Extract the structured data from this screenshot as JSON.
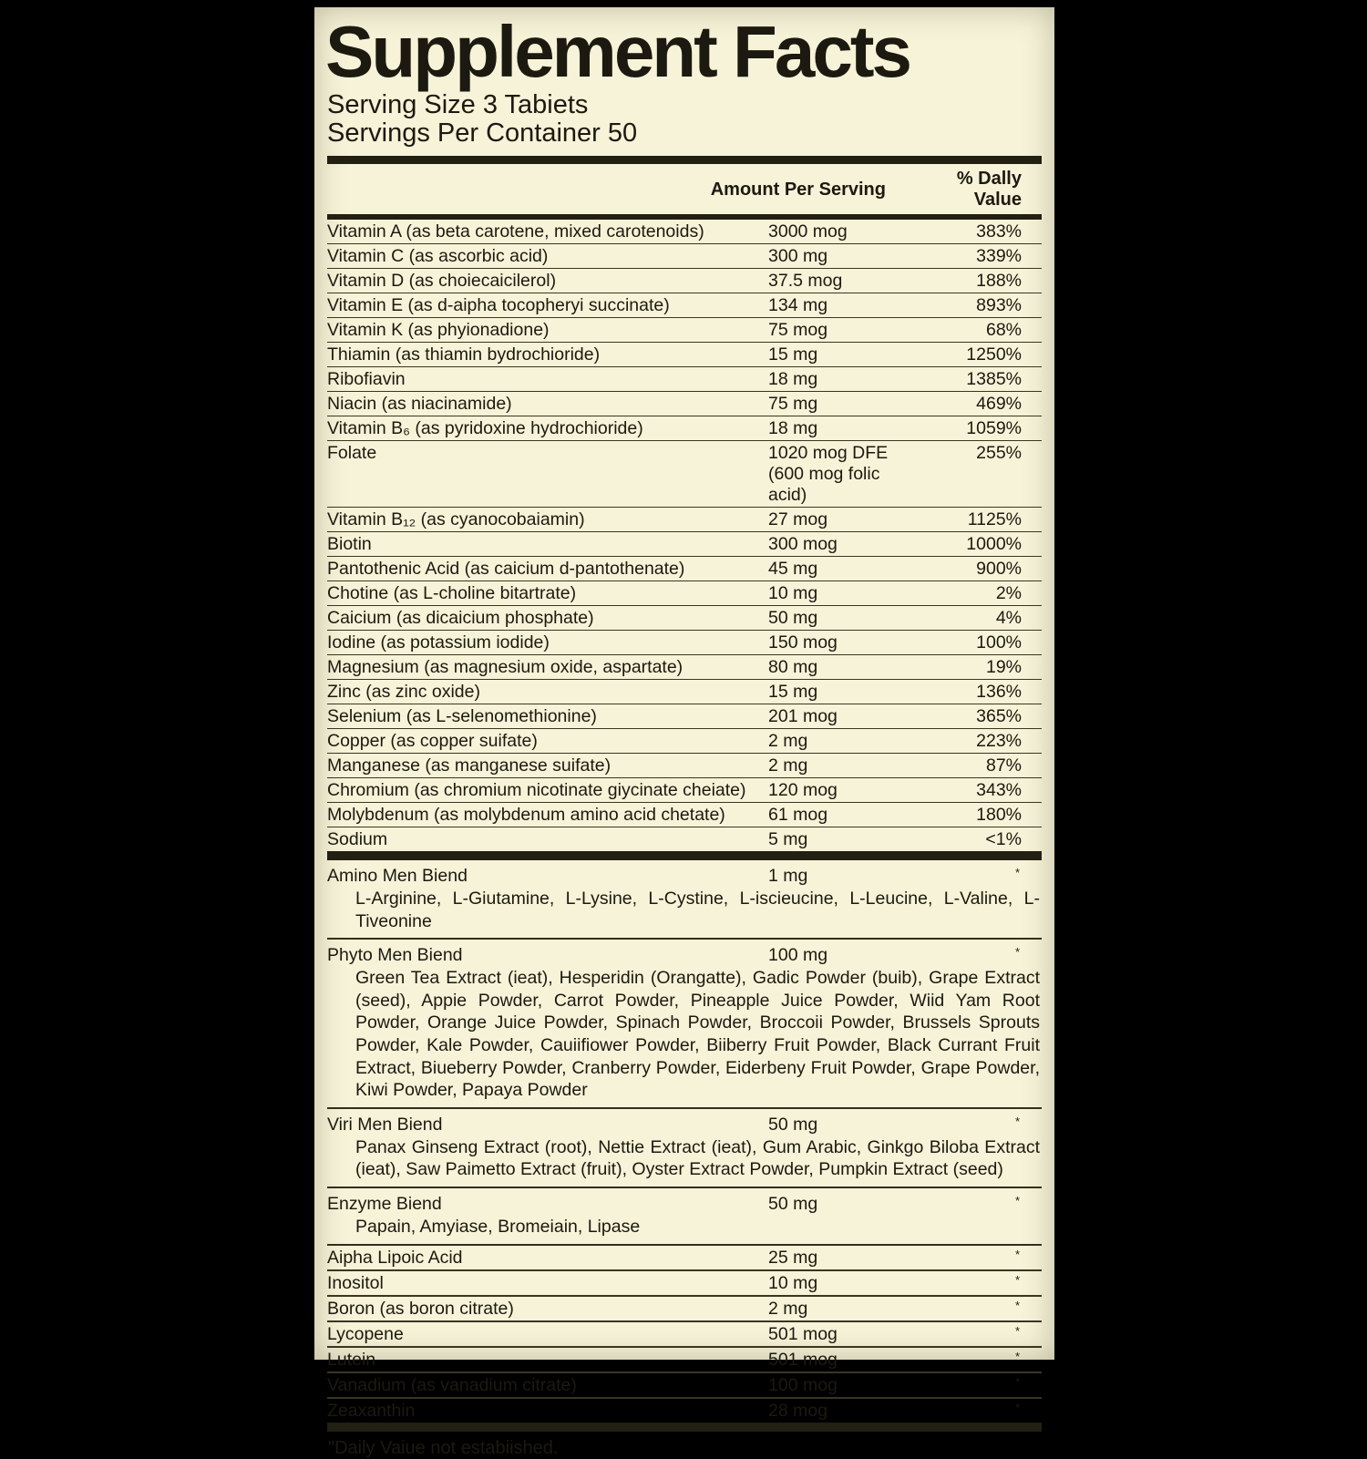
{
  "panel": {
    "title": "Supplement Facts",
    "serving_size": "Serving Size 3 Tabiets",
    "servings_per_container": "Servings Per Container 50",
    "col_amount": "Amount Per Serving",
    "col_dv": "% Dally Value",
    "footnote": "\"Daily Vaiue not estabiished.",
    "colors": {
      "background": "#f6f3d8",
      "ink": "#1c1910",
      "bar": "#221f13"
    }
  },
  "rows": [
    {
      "name": "Vitamin A (as beta carotene, mixed carotenoids)",
      "amount": "3000 mog",
      "dv": "383%"
    },
    {
      "name": "Vitamin C (as ascorbic acid)",
      "amount": "300 mg",
      "dv": "339%"
    },
    {
      "name": "Vitamin D (as choiecaicilerol)",
      "amount": "37.5 mog",
      "dv": "188%"
    },
    {
      "name": "Vitamin E (as d-aipha tocopheryi succinate)",
      "amount": "134 mg",
      "dv": "893%"
    },
    {
      "name": "Vitamin K (as phyionadione)",
      "amount": "75 mog",
      "dv": "68%"
    },
    {
      "name": "Thiamin (as thiamin bydrochioride)",
      "amount": "15 mg",
      "dv": "1250%"
    },
    {
      "name": "Ribofiavin",
      "amount": "18 mg",
      "dv": "1385%"
    },
    {
      "name": "Niacin (as niacinamide)",
      "amount": "75 mg",
      "dv": "469%"
    },
    {
      "name": "Vitamin B₆ (as pyridoxine hydrochioride)",
      "amount": "18 mg",
      "dv": "1059%"
    },
    {
      "name": "Folate",
      "amount": "1020 mog DFE\n(600 mog folic acid)",
      "dv": "255%"
    },
    {
      "name": "Vitamin B₁₂ (as cyanocobaiamin)",
      "amount": "27 mog",
      "dv": "1125%"
    },
    {
      "name": "Biotin",
      "amount": "300 mog",
      "dv": "1000%"
    },
    {
      "name": "Pantothenic Acid (as caicium d-pantothenate)",
      "amount": "45 mg",
      "dv": "900%"
    },
    {
      "name": "Chotine (as L-choline bitartrate)",
      "amount": "10 mg",
      "dv": "2%"
    },
    {
      "name": "Caicium (as dicaicium phosphate)",
      "amount": "50 mg",
      "dv": "4%"
    },
    {
      "name": "Iodine (as potassium iodide)",
      "amount": "150 mog",
      "dv": "100%"
    },
    {
      "name": "Magnesium (as magnesium oxide, aspartate)",
      "amount": "80 mg",
      "dv": "19%"
    },
    {
      "name": "Zinc (as zinc oxide)",
      "amount": "15 mg",
      "dv": "136%"
    },
    {
      "name": "Selenium (as L-selenomethionine)",
      "amount": "201 mog",
      "dv": "365%"
    },
    {
      "name": "Copper (as copper suifate)",
      "amount": "2 mg",
      "dv": "223%"
    },
    {
      "name": "Manganese (as manganese suifate)",
      "amount": "2 mg",
      "dv": "87%"
    },
    {
      "name": "Chromium (as chromium nicotinate giycinate cheiate)",
      "amount": "120 mog",
      "dv": "343%"
    },
    {
      "name": "Molybdenum (as molybdenum amino acid chetate)",
      "amount": "61 mog",
      "dv": "180%"
    },
    {
      "name": "Sodium",
      "amount": "5 mg",
      "dv": "<1%"
    }
  ],
  "blends": [
    {
      "name": "Amino Men Biend",
      "amount": "1 mg",
      "dv": "*",
      "ingredients": "L-Arginine, L-Giutamine, L-Lysine, L-Cystine, L-iscieucine, L-Leucine, L-Valine, L-Tiveonine"
    },
    {
      "name": "Phyto Men Biend",
      "amount": "100 mg",
      "dv": "*",
      "ingredients": "Green Tea Extract (ieat), Hesperidin (Orangatte), Gadic Powder (buib), Grape Extract (seed), Appie Powder, Carrot Powder, Pineapple Juice Powder, Wiid Yam Root Powder, Orange Juice Powder, Spinach Powder, Broccoii Powder, Brussels Sprouts Powder, Kale Powder, Cauiifiower Powder, Biiberry Fruit Powder, Black Currant Fruit Extract, Biueberry Powder, Cranberry Powder, Eiderbeny Fruit Powder, Grape Powder, Kiwi Powder, Papaya Powder"
    },
    {
      "name": "Viri Men Biend",
      "amount": "50 mg",
      "dv": "*",
      "ingredients": "Panax Ginseng Extract (root), Nettie Extract (ieat), Gum Arabic, Ginkgo Biloba Extract (ieat), Saw Paimetto Extract (fruit), Oyster Extract Powder, Pumpkin Extract (seed)"
    },
    {
      "name": "Enzyme Biend",
      "amount": "50 mg",
      "dv": "*",
      "ingredients": "Papain, Amyiase, Bromeiain, Lipase"
    }
  ],
  "extras": [
    {
      "name": "Aipha Lipoic Acid",
      "amount": "25 mg",
      "dv": "*"
    },
    {
      "name": "Inositol",
      "amount": "10 mg",
      "dv": "*"
    },
    {
      "name": "Boron (as boron citrate)",
      "amount": "2 mg",
      "dv": "*"
    },
    {
      "name": "Lycopene",
      "amount": "501 mog",
      "dv": "*"
    },
    {
      "name": "Lutein",
      "amount": "501 mog",
      "dv": "*"
    },
    {
      "name": "Vanadium (as vanadium citrate)",
      "amount": "100 mog",
      "dv": "*"
    },
    {
      "name": "Zeaxanthin",
      "amount": "28 mog",
      "dv": "*"
    }
  ]
}
